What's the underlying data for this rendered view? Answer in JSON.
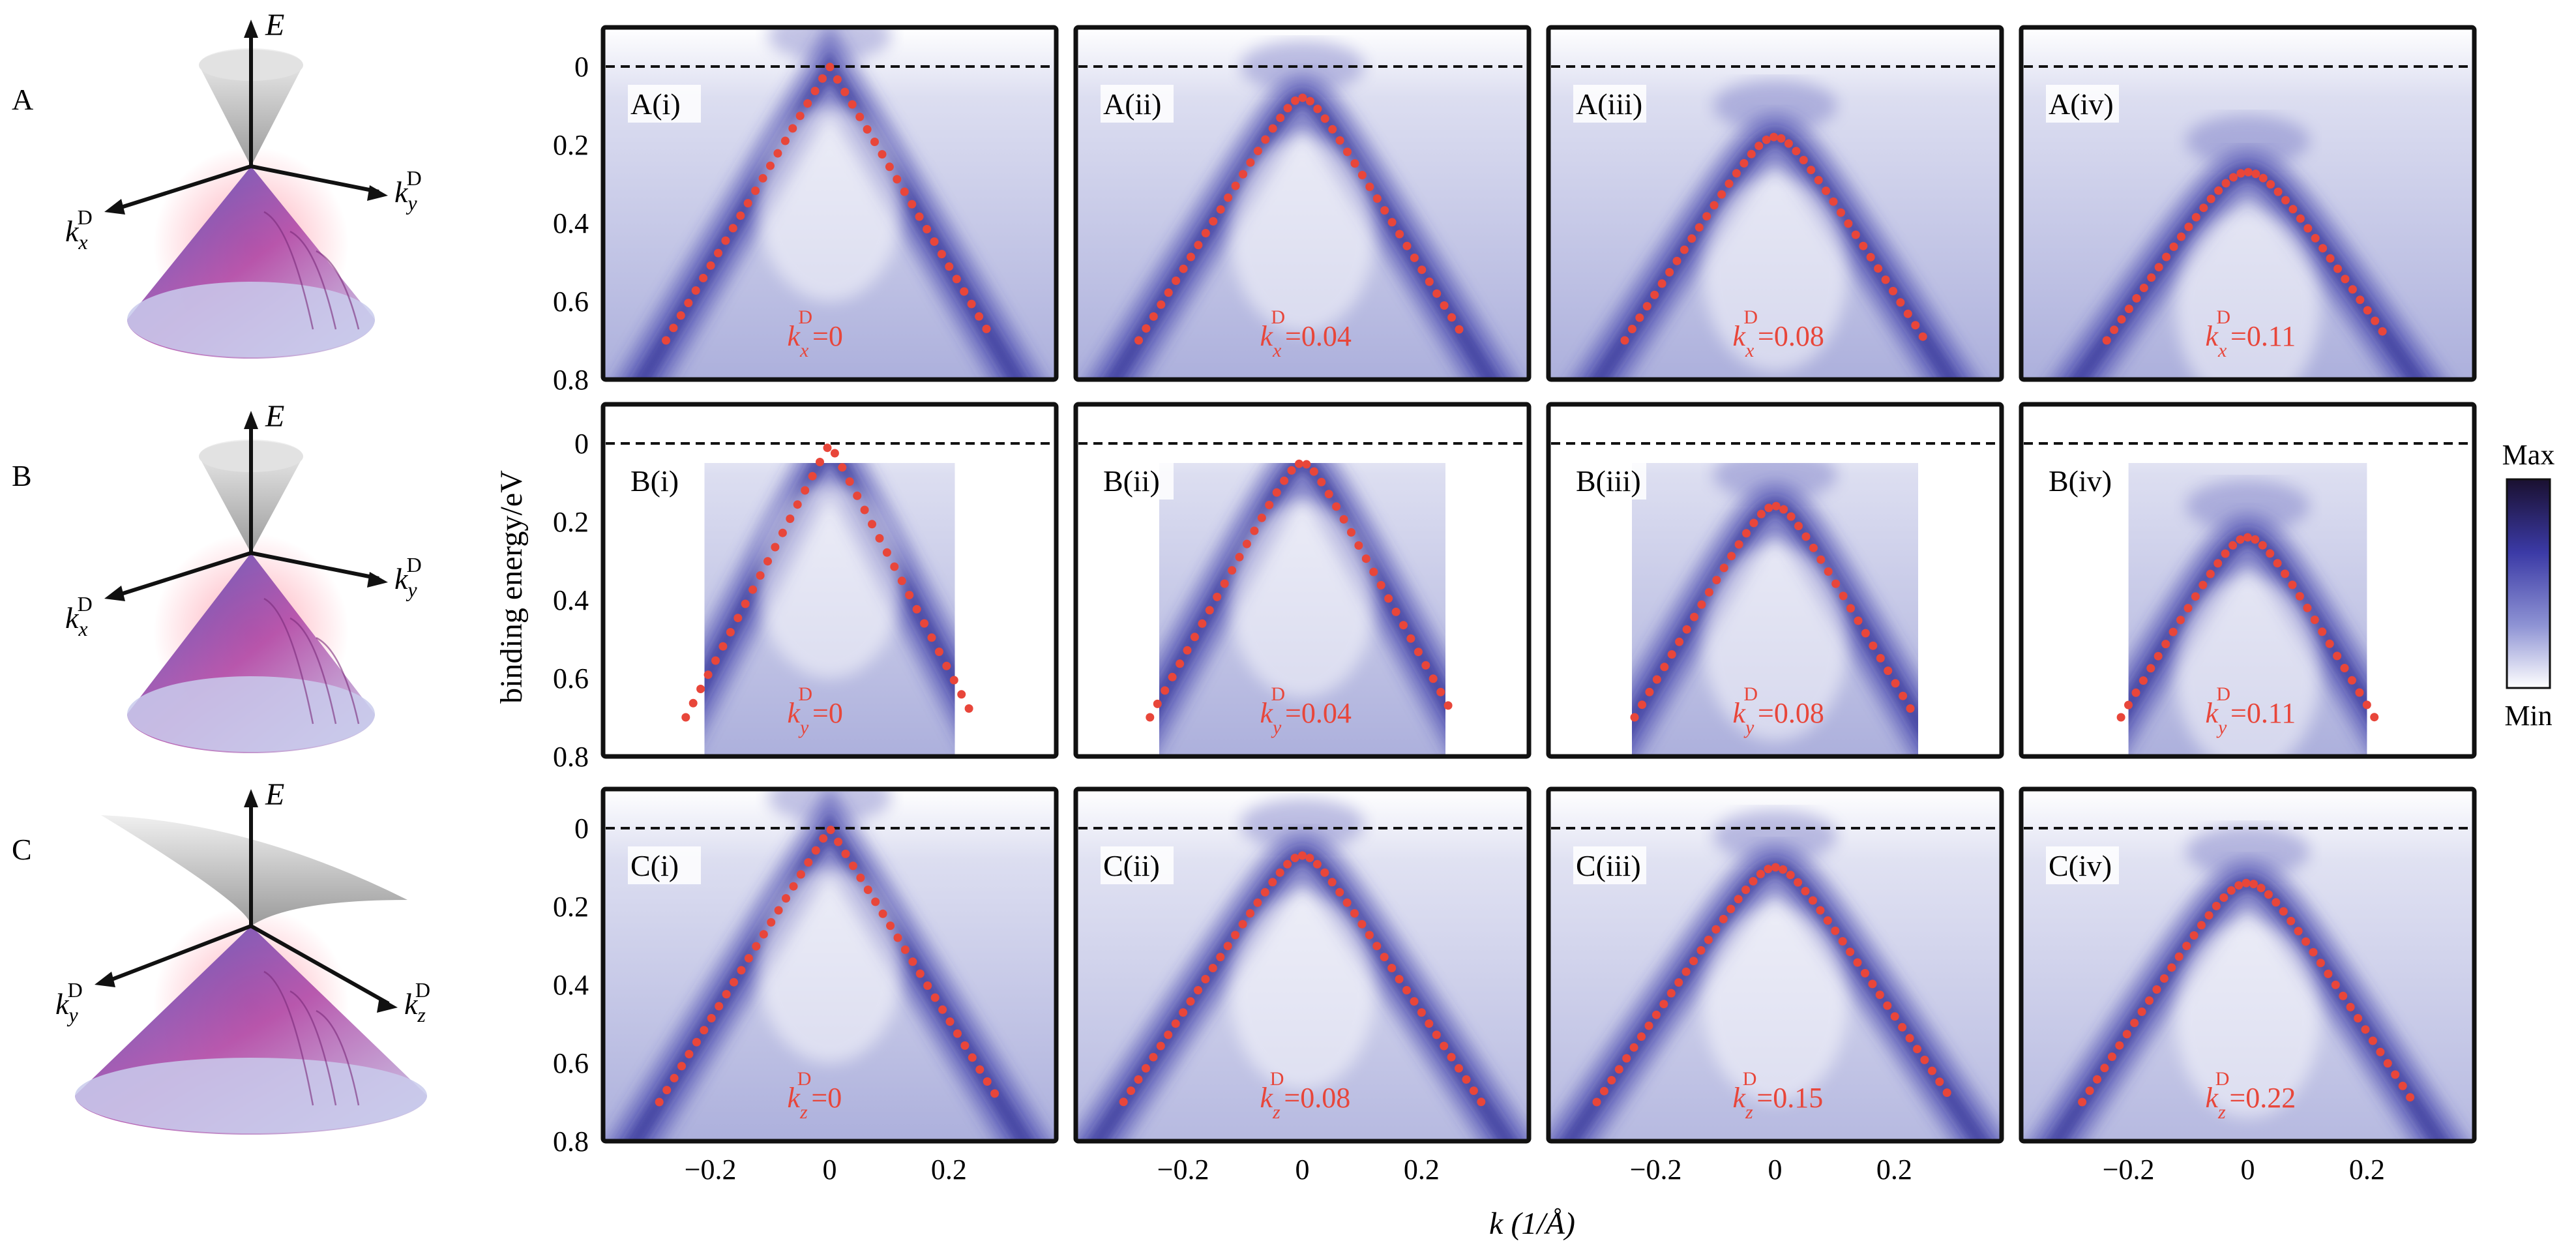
{
  "figure": {
    "row_letters": [
      "A",
      "B",
      "C"
    ],
    "cones": [
      {
        "row": "A",
        "axis_e": "E",
        "axis_left": "k",
        "axis_left_sub": "x",
        "axis_left_sup": "D",
        "axis_right": "k",
        "axis_right_sub": "y",
        "axis_right_sup": "D"
      },
      {
        "row": "B",
        "axis_e": "E",
        "axis_left": "k",
        "axis_left_sub": "x",
        "axis_left_sup": "D",
        "axis_right": "k",
        "axis_right_sub": "y",
        "axis_right_sup": "D"
      },
      {
        "row": "C",
        "axis_e": "E",
        "axis_left": "k",
        "axis_left_sub": "y",
        "axis_left_sup": "D",
        "axis_right": "k",
        "axis_right_sub": "z",
        "axis_right_sup": "D"
      }
    ],
    "ylabel": "binding energy/eV",
    "xlabel": "k (1/Å)",
    "colorbar": {
      "max_label": "Max",
      "min_label": "Min",
      "colors": [
        "#1a1030",
        "#3b3aa6",
        "#8e93d4",
        "#ffffff"
      ]
    },
    "band_color": "#3d3da8",
    "dot_color": "#e8463a",
    "label_color": "#e8463a"
  },
  "chart_data": [
    {
      "type": "scatter",
      "panel": "A(i)",
      "title": "A(i)",
      "annotation": "k",
      "annotation_sub": "x",
      "annotation_sup": "D",
      "annotation_value": "=0",
      "apex": 0.0,
      "curvature": 0,
      "slope": 2.55,
      "ylim": [
        0.8,
        -0.1
      ],
      "xlim": [
        -0.38,
        0.38
      ],
      "yticks": [
        0,
        0.2,
        0.4,
        0.6,
        0.8
      ],
      "xticks": [],
      "k_window": null
    },
    {
      "type": "scatter",
      "panel": "A(ii)",
      "title": "A(ii)",
      "annotation": "k",
      "annotation_sub": "x",
      "annotation_sup": "D",
      "annotation_value": "=0.04",
      "apex": 0.08,
      "curvature": 0.003,
      "slope": 2.45,
      "ylim": [
        0.8,
        -0.1
      ],
      "xlim": [
        -0.38,
        0.38
      ],
      "yticks": [],
      "xticks": [],
      "k_window": null
    },
    {
      "type": "scatter",
      "panel": "A(iii)",
      "title": "A(iii)",
      "annotation": "k",
      "annotation_sub": "x",
      "annotation_sup": "D",
      "annotation_value": "=0.08",
      "apex": 0.18,
      "curvature": 0.006,
      "slope": 2.35,
      "ylim": [
        0.8,
        -0.1
      ],
      "xlim": [
        -0.38,
        0.38
      ],
      "yticks": [],
      "xticks": [],
      "k_window": null
    },
    {
      "type": "scatter",
      "panel": "A(iv)",
      "title": "A(iv)",
      "annotation": "k",
      "annotation_sub": "x",
      "annotation_sup": "D",
      "annotation_value": "=0.11",
      "apex": 0.27,
      "curvature": 0.01,
      "slope": 2.2,
      "ylim": [
        0.8,
        -0.1
      ],
      "xlim": [
        -0.38,
        0.38
      ],
      "yticks": [],
      "xticks": [],
      "k_window": null
    },
    {
      "type": "scatter",
      "panel": "B(i)",
      "title": "B(i)",
      "annotation": "k",
      "annotation_sub": "y",
      "annotation_sup": "D",
      "annotation_value": "=0",
      "apex": 0.0,
      "curvature": 0,
      "slope": 2.9,
      "ylim": [
        0.8,
        -0.1
      ],
      "xlim": [
        -0.38,
        0.38
      ],
      "yticks": [
        0,
        0.2,
        0.4,
        0.6,
        0.8
      ],
      "xticks": [],
      "k_window": [
        -0.21,
        0.21
      ]
    },
    {
      "type": "scatter",
      "panel": "B(ii)",
      "title": "B(ii)",
      "annotation": "k",
      "annotation_sub": "y",
      "annotation_sup": "D",
      "annotation_value": "=0.04",
      "apex": 0.05,
      "curvature": 0.003,
      "slope": 2.75,
      "ylim": [
        0.8,
        -0.1
      ],
      "xlim": [
        -0.38,
        0.38
      ],
      "yticks": [],
      "xticks": [],
      "k_window": [
        -0.24,
        0.24
      ]
    },
    {
      "type": "scatter",
      "panel": "B(iii)",
      "title": "B(iii)",
      "annotation": "k",
      "annotation_sub": "y",
      "annotation_sup": "D",
      "annotation_value": "=0.08",
      "apex": 0.16,
      "curvature": 0.006,
      "slope": 2.6,
      "ylim": [
        0.8,
        -0.1
      ],
      "xlim": [
        -0.38,
        0.38
      ],
      "yticks": [],
      "xticks": [],
      "k_window": [
        -0.24,
        0.24
      ]
    },
    {
      "type": "scatter",
      "panel": "B(iv)",
      "title": "B(iv)",
      "annotation": "k",
      "annotation_sub": "y",
      "annotation_sup": "D",
      "annotation_value": "=0.11",
      "apex": 0.24,
      "curvature": 0.008,
      "slope": 2.55,
      "ylim": [
        0.8,
        -0.1
      ],
      "xlim": [
        -0.38,
        0.38
      ],
      "yticks": [],
      "xticks": [],
      "k_window": [
        -0.2,
        0.2
      ]
    },
    {
      "type": "scatter",
      "panel": "C(i)",
      "title": "C(i)",
      "annotation": "k",
      "annotation_sub": "z",
      "annotation_sup": "D",
      "annotation_value": "=0",
      "apex": 0.0,
      "curvature": 0,
      "slope": 2.45,
      "ylim": [
        0.8,
        -0.1
      ],
      "xlim": [
        -0.38,
        0.38
      ],
      "yticks": [
        0,
        0.2,
        0.4,
        0.6,
        0.8
      ],
      "xticks": [
        -0.2,
        0,
        0.2
      ],
      "k_window": null
    },
    {
      "type": "scatter",
      "panel": "C(ii)",
      "title": "C(ii)",
      "annotation": "k",
      "annotation_sub": "z",
      "annotation_sup": "D",
      "annotation_value": "=0.08",
      "apex": 0.07,
      "curvature": 0.004,
      "slope": 2.3,
      "ylim": [
        0.8,
        -0.1
      ],
      "xlim": [
        -0.38,
        0.38
      ],
      "yticks": [],
      "xticks": [
        -0.2,
        0,
        0.2
      ],
      "k_window": null
    },
    {
      "type": "scatter",
      "panel": "C(iii)",
      "title": "C(iii)",
      "annotation": "k",
      "annotation_sub": "z",
      "annotation_sup": "D",
      "annotation_value": "=0.15",
      "apex": 0.1,
      "curvature": 0.006,
      "slope": 2.25,
      "ylim": [
        0.8,
        -0.1
      ],
      "xlim": [
        -0.38,
        0.38
      ],
      "yticks": [],
      "xticks": [
        -0.2,
        0,
        0.2
      ],
      "k_window": null
    },
    {
      "type": "scatter",
      "panel": "C(iv)",
      "title": "C(iv)",
      "annotation": "k",
      "annotation_sub": "z",
      "annotation_sup": "D",
      "annotation_value": "=0.22",
      "apex": 0.14,
      "curvature": 0.01,
      "slope": 2.35,
      "ylim": [
        0.8,
        -0.1
      ],
      "xlim": [
        -0.38,
        0.38
      ],
      "yticks": [],
      "xticks": [
        -0.2,
        0,
        0.2
      ],
      "k_window": null
    }
  ]
}
